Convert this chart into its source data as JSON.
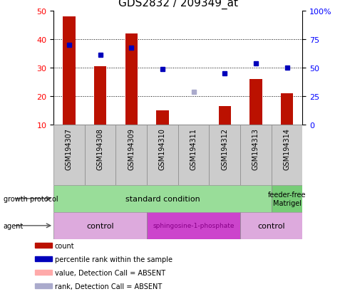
{
  "title": "GDS2832 / 209349_at",
  "samples": [
    "GSM194307",
    "GSM194308",
    "GSM194309",
    "GSM194310",
    "GSM194311",
    "GSM194312",
    "GSM194313",
    "GSM194314"
  ],
  "bar_values": [
    48,
    30.5,
    42,
    15,
    10,
    16.5,
    26,
    21
  ],
  "rank_values": [
    38,
    34.5,
    37,
    29.5,
    21.5,
    28,
    31.5,
    30
  ],
  "rank_absent": [
    false,
    false,
    false,
    false,
    true,
    false,
    false,
    false
  ],
  "bar_absent": [
    false,
    false,
    false,
    false,
    true,
    false,
    false,
    false
  ],
  "ylim_left": [
    10,
    50
  ],
  "y_left_ticks": [
    10,
    20,
    30,
    40,
    50
  ],
  "y_right_tick_positions": [
    10,
    20,
    30,
    40,
    50
  ],
  "y_right_tick_labels": [
    "0",
    "25",
    "50",
    "75",
    "100%"
  ],
  "bar_color": "#bb1100",
  "rank_color_present": "#0000bb",
  "rank_color_absent": "#aaaacc",
  "bar_color_absent": "#ffaaaa",
  "growth_color": "#99dd99",
  "feeder_color": "#77cc77",
  "agent_light_color": "#ddaadd",
  "agent_dark_color": "#cc44cc",
  "sample_box_color": "#cccccc",
  "legend_items": [
    {
      "label": "count",
      "color": "#bb1100"
    },
    {
      "label": "percentile rank within the sample",
      "color": "#0000bb"
    },
    {
      "label": "value, Detection Call = ABSENT",
      "color": "#ffaaaa"
    },
    {
      "label": "rank, Detection Call = ABSENT",
      "color": "#aaaacc"
    }
  ]
}
